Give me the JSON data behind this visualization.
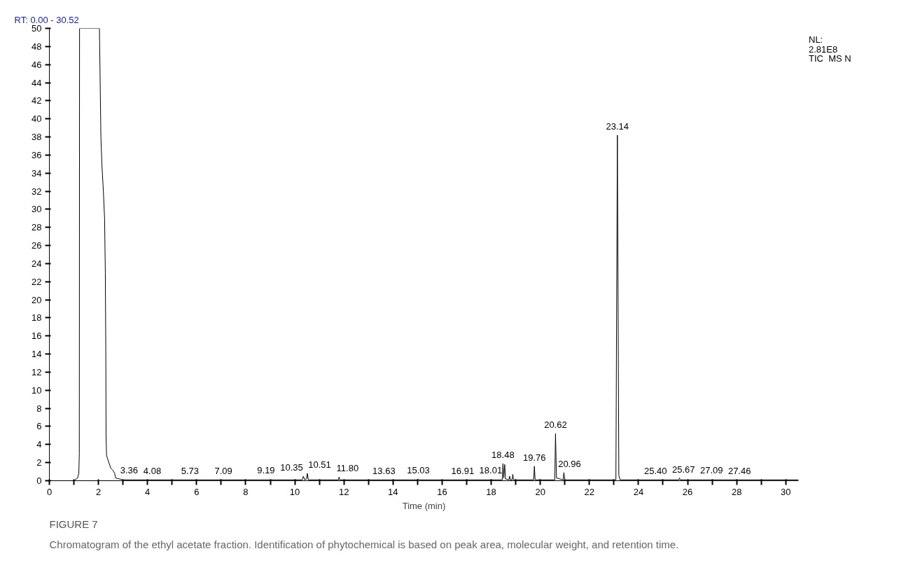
{
  "chart_data": {
    "type": "line",
    "title": "FIGURE 7",
    "subtitle": "Chromatogram of the ethyl acetate fraction. Identification of phytochemical is based on peak area, molecular weight, and retention time.",
    "xlabel": "Time (min)",
    "x": [
      0,
      1.0,
      1.15,
      1.2,
      1.22,
      1.23,
      2.04,
      2.1,
      2.14,
      2.2,
      2.25,
      2.28,
      2.3,
      2.31,
      2.33,
      2.4,
      2.5,
      2.6,
      2.66,
      2.7,
      3.0,
      10.3,
      10.35,
      10.4,
      10.48,
      10.51,
      10.55,
      11.78,
      11.8,
      11.83,
      15.0,
      15.03,
      15.06,
      18.45,
      18.48,
      18.51,
      18.55,
      18.58,
      18.72,
      18.75,
      18.78,
      18.85,
      18.88,
      18.91,
      19.73,
      19.76,
      19.79,
      20.59,
      20.62,
      20.66,
      20.93,
      20.96,
      21.0,
      23.08,
      23.14,
      23.2,
      23.25,
      25.64,
      25.67,
      25.7,
      30.52
    ],
    "series": [
      {
        "color": "#000000",
        "values": [
          0,
          0,
          0.3,
          0.8,
          3,
          50,
          50,
          38,
          35,
          32,
          29,
          23,
          14,
          5,
          2.8,
          2.2,
          1.4,
          1.1,
          0.8,
          0.3,
          0.1,
          0.1,
          0.5,
          0.1,
          0.2,
          0.8,
          0.1,
          0.1,
          0.4,
          0.1,
          0.1,
          0.2,
          0.1,
          0.1,
          1.9,
          0.3,
          1.8,
          0.2,
          0.1,
          0.5,
          0.1,
          0.1,
          0.7,
          0.1,
          0.1,
          1.6,
          0.1,
          0.1,
          5.2,
          0.3,
          0.1,
          0.9,
          0.1,
          0.1,
          38.2,
          0.6,
          0.1,
          0.1,
          0.3,
          0.1,
          0.1
        ]
      }
    ],
    "xlim": [
      0,
      30.52
    ],
    "ylim": [
      0,
      50
    ],
    "xticks": [
      0,
      {
        "value": 1,
        "label": null
      },
      2,
      {
        "value": 3,
        "label": null
      },
      4,
      {
        "value": 5,
        "label": null
      },
      6,
      {
        "value": 7,
        "label": null
      },
      8,
      {
        "value": 9,
        "label": null
      },
      10,
      {
        "value": 11,
        "label": null
      },
      12,
      {
        "value": 13,
        "label": null
      },
      14,
      {
        "value": 15,
        "label": null
      },
      16,
      {
        "value": 17,
        "label": null
      },
      18,
      {
        "value": 19,
        "label": null
      },
      20,
      {
        "value": 21,
        "label": null
      },
      22,
      {
        "value": 23,
        "label": null
      },
      24,
      {
        "value": 25,
        "label": null
      },
      26,
      {
        "value": 27,
        "label": null
      },
      28,
      {
        "value": 29,
        "label": null
      },
      30
    ],
    "yticks": [
      0,
      2,
      4,
      6,
      8,
      10,
      12,
      14,
      16,
      18,
      20,
      22,
      24,
      26,
      28,
      30,
      32,
      34,
      36,
      38,
      40,
      42,
      44,
      46,
      48,
      50
    ],
    "grid": false,
    "marker": "none",
    "line_style": "solid",
    "annotations": [
      "RT: 0.00 - 30.52",
      "NL:\n2.81E8\nTIC  MS N",
      {
        "text": "3.36",
        "x": 3.36,
        "y": 0.2
      },
      {
        "text": "4.08",
        "x": 4.08,
        "y": 0.1
      },
      {
        "text": "5.73",
        "x": 5.73,
        "y": 0.1
      },
      {
        "text": "7.09",
        "x": 7.09,
        "y": 0.1
      },
      {
        "text": "9.19",
        "x": 9.19,
        "y": 0.2
      },
      {
        "text": "10.35",
        "x": 10.35,
        "y": 0.5
      },
      {
        "text": "10.51",
        "x": 10.51,
        "y": 0.8
      },
      {
        "text": "11.80",
        "x": 11.8,
        "y": 0.4
      },
      {
        "text": "13.63",
        "x": 13.63,
        "y": 0.1
      },
      {
        "text": "15.03",
        "x": 15.03,
        "y": 0.2
      },
      {
        "text": "16.91",
        "x": 16.91,
        "y": 0.1
      },
      {
        "text": "18.01",
        "x": 18.01,
        "y": 0.2
      },
      {
        "text": "18.48",
        "x": 18.48,
        "y": 1.9
      },
      {
        "text": "19.76",
        "x": 19.76,
        "y": 1.6
      },
      {
        "text": "20.62",
        "x": 20.62,
        "y": 5.2
      },
      {
        "text": "20.96",
        "x": 20.96,
        "y": 0.9
      },
      {
        "text": "23.14",
        "x": 23.14,
        "y": 38.2
      },
      {
        "text": "25.40",
        "x": 25.4,
        "y": 0.1
      },
      {
        "text": "25.67",
        "x": 25.67,
        "y": 0.3
      },
      {
        "text": "27.09",
        "x": 27.09,
        "y": 0.2
      },
      {
        "text": "27.46",
        "x": 27.46,
        "y": 0.1
      }
    ]
  }
}
